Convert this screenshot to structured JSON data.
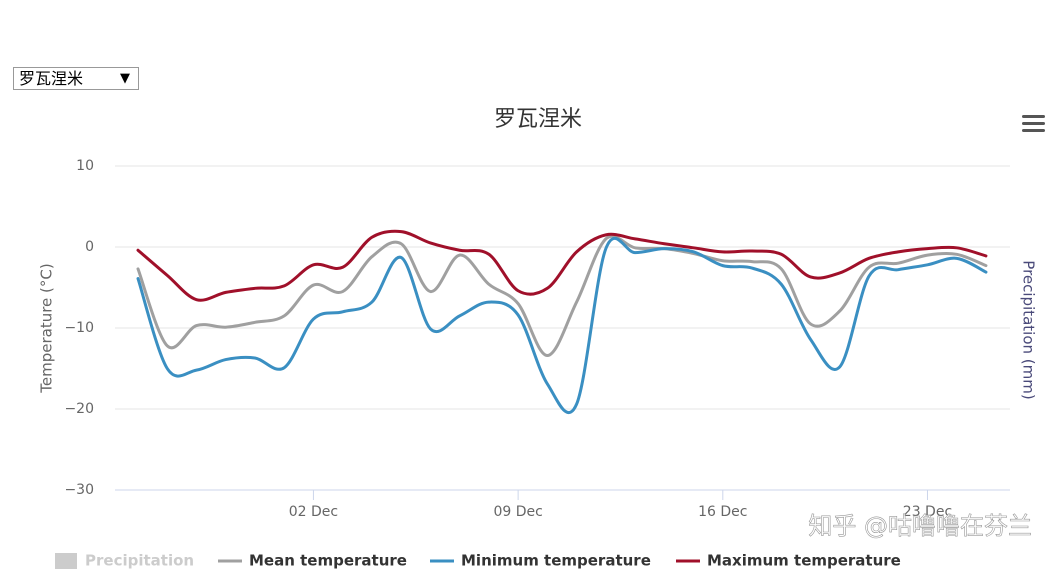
{
  "selector": "罗瓦涅米",
  "watermark": "知乎 @咕噜噜在芬兰",
  "chart_data": {
    "type": "line",
    "title": "罗瓦涅米",
    "y_label": "Temperature (°C)",
    "y2_label": "Precipitation (mm)",
    "categories": [
      null,
      null,
      null,
      null,
      null,
      null,
      "02 Dec",
      null,
      null,
      null,
      null,
      null,
      null,
      "09 Dec",
      null,
      null,
      null,
      null,
      null,
      null,
      "16 Dec",
      null,
      null,
      null,
      null,
      null,
      null,
      "23 Dec",
      null,
      null
    ],
    "ylim": [
      -30,
      10
    ],
    "yticks": [
      {
        "value": -30,
        "label": "−30"
      },
      {
        "value": -20,
        "label": "−20"
      },
      {
        "value": -10,
        "label": "−10"
      },
      0,
      10
    ],
    "grid": true,
    "legend": "bottom",
    "series": [
      {
        "name": "Precipitation",
        "color": "#cccccc",
        "axis": "y2",
        "visible": false
      },
      {
        "name": "Mean temperature",
        "color": "#a0a0a0",
        "values": [
          -2.7,
          -12.2,
          -9.7,
          -9.9,
          -9.3,
          -8.5,
          -4.7,
          -5.5,
          -1.2,
          0.4,
          -5.5,
          -1.0,
          -4.6,
          -7.0,
          -13.4,
          -6.8,
          1.0,
          -0.1,
          -0.2,
          -0.8,
          -1.7,
          -1.8,
          -2.7,
          -9.5,
          -7.9,
          -2.5,
          -2.0,
          -1.0,
          -0.9,
          -2.3
        ]
      },
      {
        "name": "Minimum temperature",
        "color": "#3a8fc2",
        "values": [
          -3.9,
          -15.0,
          -15.2,
          -13.9,
          -13.7,
          -14.9,
          -8.9,
          -8.0,
          -6.8,
          -1.3,
          -10.1,
          -8.5,
          -6.8,
          -8.4,
          -16.9,
          -19.4,
          -0.2,
          -0.7,
          -0.2,
          -0.6,
          -2.3,
          -2.6,
          -4.6,
          -11.4,
          -14.8,
          -3.6,
          -2.8,
          -2.2,
          -1.4,
          -3.1
        ]
      },
      {
        "name": "Maximum temperature",
        "color": "#a0102a",
        "values": [
          -0.4,
          -3.5,
          -6.5,
          -5.6,
          -5.1,
          -4.8,
          -2.2,
          -2.5,
          1.2,
          1.9,
          0.5,
          -0.4,
          -0.9,
          -5.4,
          -5.1,
          -0.6,
          1.5,
          1.0,
          0.4,
          -0.1,
          -0.6,
          -0.5,
          -0.9,
          -3.7,
          -3.2,
          -1.4,
          -0.6,
          -0.2,
          -0.1,
          -1.1
        ]
      }
    ]
  }
}
